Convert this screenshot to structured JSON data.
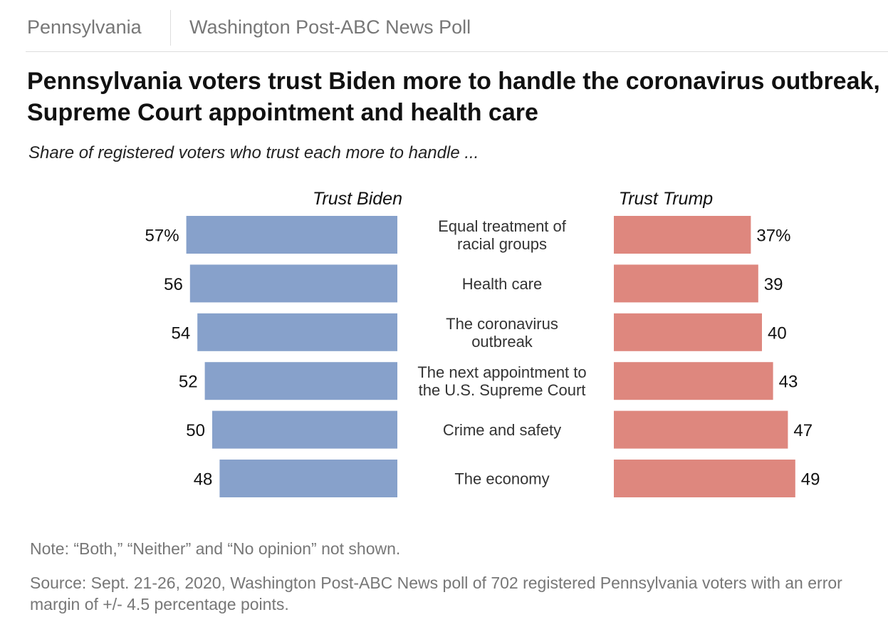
{
  "header": {
    "region": "Pennsylvania",
    "poll": "Washington Post-ABC News Poll"
  },
  "title": "Pennsylvania voters trust Biden more to handle the coronavirus outbreak, Supreme Court appointment and health care",
  "subtitle": "Share of registered voters who trust each more to handle ...",
  "colors": {
    "biden": "#87a1cb",
    "trump": "#de877e"
  },
  "chart_data": {
    "type": "bar",
    "orientation": "horizontal-diverging",
    "title": "Pennsylvania voters trust Biden more to handle the coronavirus outbreak, Supreme Court appointment and health care",
    "subtitle": "Share of registered voters who trust each more to handle ...",
    "categories": [
      [
        "Equal treatment of",
        "racial groups"
      ],
      [
        "Health care"
      ],
      [
        "The coronavirus",
        "outbreak"
      ],
      [
        "The next appointment to",
        "the U.S. Supreme Court"
      ],
      [
        "Crime and safety"
      ],
      [
        "The economy"
      ]
    ],
    "series": [
      {
        "name": "Trust Biden",
        "values": [
          57,
          56,
          54,
          52,
          50,
          48
        ],
        "labels": [
          "57%",
          "56",
          "54",
          "52",
          "50",
          "48"
        ]
      },
      {
        "name": "Trust Trump",
        "values": [
          37,
          39,
          40,
          43,
          47,
          49
        ],
        "labels": [
          "37%",
          "39",
          "40",
          "43",
          "47",
          "49"
        ]
      }
    ],
    "unit": "percent",
    "xlim": [
      0,
      100
    ]
  },
  "note": "Note: “Both,” “Neither” and “No opinion” not shown.",
  "source": "Source: Sept. 21-26, 2020, Washington Post-ABC News poll of 702 registered Pennsylvania voters with an error margin of +/- 4.5 percentage points."
}
